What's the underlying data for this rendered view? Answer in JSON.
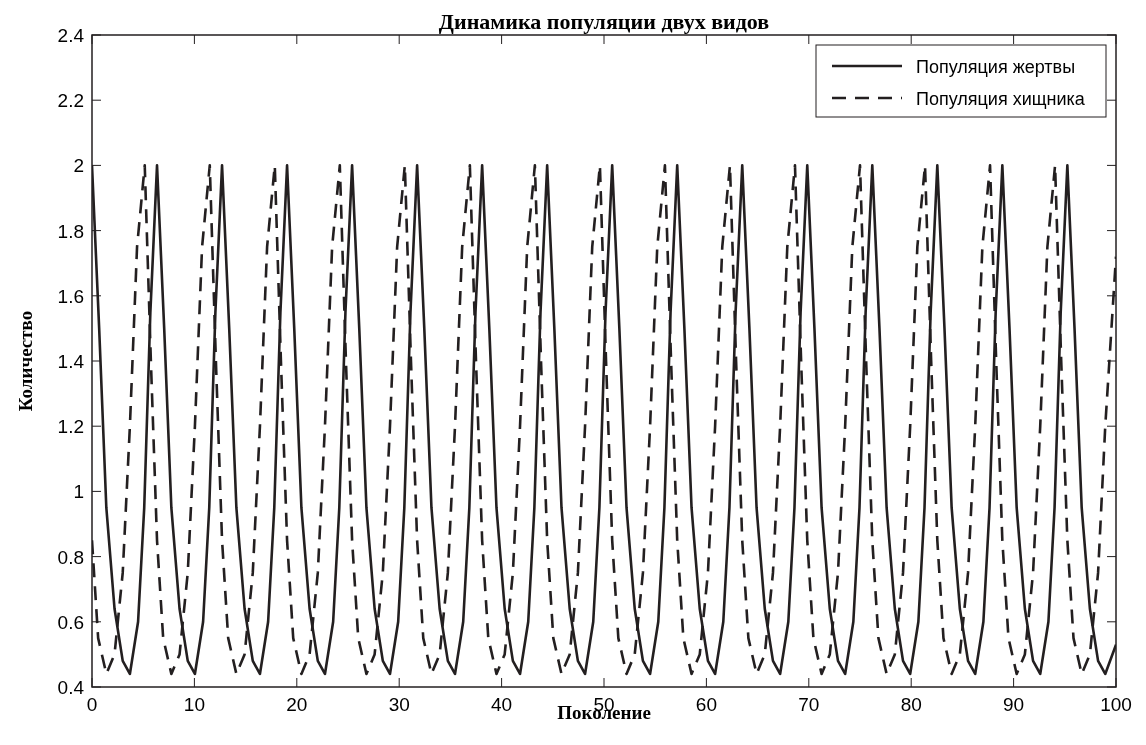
{
  "chart_data": {
    "type": "line",
    "title": "Динамика популяции двух видов",
    "xlabel": "Поколение",
    "ylabel": "Количество",
    "xlim": [
      0,
      100
    ],
    "xticks": [
      0,
      10,
      20,
      30,
      40,
      50,
      60,
      70,
      80,
      90,
      100
    ],
    "ylim": [
      0.4,
      2.4
    ],
    "yticks": [
      0.4,
      0.6,
      0.8,
      1,
      1.2,
      1.4,
      1.6,
      1.8,
      2,
      2.2,
      2.4
    ],
    "grid": false,
    "legend": "top right",
    "marker": "none",
    "series": [
      {
        "name": "Популяция жертвы",
        "color": "#231f20",
        "line_style": "solid",
        "x": [
          0,
          0.7,
          1.4,
          2.2,
          3.0,
          3.7,
          4.5,
          5.1,
          5.7,
          6.35,
          7.05,
          7.75,
          8.55,
          9.35,
          10.05,
          10.85,
          11.45,
          12.05,
          12.7,
          13.4,
          14.1,
          14.9,
          15.7,
          16.4,
          17.2,
          17.8,
          18.4,
          19.05,
          19.75,
          20.45,
          21.25,
          22.05,
          22.75,
          23.55,
          24.15,
          24.75,
          25.4,
          26.1,
          26.8,
          27.6,
          28.4,
          29.1,
          29.9,
          30.5,
          31.1,
          31.75,
          32.45,
          33.15,
          33.95,
          34.75,
          35.45,
          36.25,
          36.85,
          37.45,
          38.1,
          38.8,
          39.5,
          40.3,
          41.1,
          41.8,
          42.6,
          43.2,
          43.8,
          44.45,
          45.15,
          45.85,
          46.65,
          47.45,
          48.15,
          48.95,
          49.55,
          50.15,
          50.8,
          51.5,
          52.2,
          53,
          53.8,
          54.5,
          55.3,
          55.9,
          56.5,
          57.15,
          57.85,
          58.55,
          59.35,
          60.15,
          60.85,
          61.65,
          62.25,
          62.85,
          63.5,
          64.2,
          64.9,
          65.7,
          66.5,
          67.2,
          68,
          68.6,
          69.2,
          69.85,
          70.55,
          71.25,
          72.05,
          72.85,
          73.55,
          74.35,
          74.95,
          75.55,
          76.2,
          76.9,
          77.6,
          78.4,
          79.2,
          79.9,
          80.7,
          81.3,
          81.9,
          82.55,
          83.25,
          83.95,
          84.75,
          85.55,
          86.25,
          87.05,
          87.65,
          88.25,
          88.9,
          89.6,
          90.3,
          91.1,
          91.9,
          92.6,
          93.4,
          94,
          94.6,
          95.25,
          95.95,
          96.65,
          97.45,
          98.25,
          98.95,
          100
        ],
        "values": [
          2,
          1.5,
          0.95,
          0.64,
          0.48,
          0.44,
          0.6,
          0.95,
          1.55,
          2,
          1.5,
          0.95,
          0.64,
          0.48,
          0.44,
          0.6,
          0.95,
          1.55,
          2,
          1.5,
          0.95,
          0.64,
          0.48,
          0.44,
          0.6,
          0.95,
          1.55,
          2,
          1.5,
          0.95,
          0.64,
          0.48,
          0.44,
          0.6,
          0.95,
          1.55,
          2,
          1.5,
          0.95,
          0.64,
          0.48,
          0.44,
          0.6,
          0.95,
          1.55,
          2,
          1.5,
          0.95,
          0.64,
          0.48,
          0.44,
          0.6,
          0.95,
          1.55,
          2,
          1.5,
          0.95,
          0.64,
          0.48,
          0.44,
          0.6,
          0.95,
          1.55,
          2,
          1.5,
          0.95,
          0.64,
          0.48,
          0.44,
          0.6,
          0.95,
          1.55,
          2,
          1.5,
          0.95,
          0.64,
          0.48,
          0.44,
          0.6,
          0.95,
          1.55,
          2,
          1.5,
          0.95,
          0.64,
          0.48,
          0.44,
          0.6,
          0.95,
          1.55,
          2,
          1.5,
          0.95,
          0.64,
          0.48,
          0.44,
          0.6,
          0.95,
          1.55,
          2,
          1.5,
          0.95,
          0.64,
          0.48,
          0.44,
          0.6,
          0.95,
          1.55,
          2,
          1.5,
          0.95,
          0.64,
          0.48,
          0.44,
          0.6,
          0.95,
          1.55,
          2,
          1.5,
          0.95,
          0.64,
          0.48,
          0.44,
          0.6,
          0.95,
          1.55,
          2,
          1.5,
          0.95,
          0.64,
          0.48,
          0.44,
          0.6,
          0.95,
          1.55,
          2,
          1.5,
          0.95,
          0.64,
          0.48,
          0.44,
          0.53
        ]
      },
      {
        "name": "Популяция хищника",
        "color": "#231f20",
        "line_style": "dashed",
        "x": [
          0,
          0.6,
          1.4,
          2.2,
          3.0,
          3.7,
          4.4,
          5.15,
          5.75,
          6.35,
          6.95,
          7.75,
          8.55,
          9.35,
          10.05,
          10.75,
          11.5,
          12.1,
          12.7,
          13.3,
          14.1,
          14.9,
          15.7,
          16.4,
          17.1,
          17.85,
          18.45,
          19.05,
          19.65,
          20.45,
          21.25,
          22.05,
          22.75,
          23.45,
          24.2,
          24.8,
          25.4,
          26,
          26.8,
          27.6,
          28.4,
          29.1,
          29.8,
          30.55,
          31.15,
          31.75,
          32.35,
          33.15,
          33.95,
          34.75,
          35.45,
          36.15,
          36.9,
          37.5,
          38.1,
          38.7,
          39.5,
          40.3,
          41.1,
          41.8,
          42.5,
          43.25,
          43.85,
          44.45,
          45.05,
          45.85,
          46.65,
          47.45,
          48.15,
          48.85,
          49.6,
          50.2,
          50.8,
          51.4,
          52.2,
          53,
          53.8,
          54.5,
          55.2,
          55.95,
          56.55,
          57.15,
          57.75,
          58.55,
          59.35,
          60.15,
          60.85,
          61.55,
          62.3,
          62.9,
          63.5,
          64.1,
          64.9,
          65.7,
          66.5,
          67.2,
          67.9,
          68.65,
          69.25,
          69.85,
          70.45,
          71.25,
          72.05,
          72.85,
          73.55,
          74.25,
          75,
          75.6,
          76.2,
          76.8,
          77.6,
          78.4,
          79.2,
          79.9,
          80.6,
          81.35,
          81.95,
          82.55,
          83.15,
          83.95,
          84.75,
          85.55,
          86.25,
          86.95,
          87.7,
          88.3,
          88.9,
          89.5,
          90.3,
          91.1,
          91.9,
          92.6,
          93.3,
          94.05,
          94.65,
          95.25,
          95.85,
          96.65,
          97.45,
          98.25,
          98.95,
          100
        ],
        "values": [
          0.85,
          0.55,
          0.44,
          0.5,
          0.75,
          1.2,
          1.75,
          2,
          1.4,
          0.85,
          0.55,
          0.44,
          0.5,
          0.75,
          1.2,
          1.75,
          2,
          1.4,
          0.85,
          0.55,
          0.44,
          0.5,
          0.75,
          1.2,
          1.75,
          2,
          1.4,
          0.85,
          0.55,
          0.44,
          0.5,
          0.75,
          1.2,
          1.75,
          2,
          1.4,
          0.85,
          0.55,
          0.44,
          0.5,
          0.75,
          1.2,
          1.75,
          2,
          1.4,
          0.85,
          0.55,
          0.44,
          0.5,
          0.75,
          1.2,
          1.75,
          2,
          1.4,
          0.85,
          0.55,
          0.44,
          0.5,
          0.75,
          1.2,
          1.75,
          2,
          1.4,
          0.85,
          0.55,
          0.44,
          0.5,
          0.75,
          1.2,
          1.75,
          2,
          1.4,
          0.85,
          0.55,
          0.44,
          0.5,
          0.75,
          1.2,
          1.75,
          2,
          1.4,
          0.85,
          0.55,
          0.44,
          0.5,
          0.75,
          1.2,
          1.75,
          2,
          1.4,
          0.85,
          0.55,
          0.44,
          0.5,
          0.75,
          1.2,
          1.75,
          2,
          1.4,
          0.85,
          0.55,
          0.44,
          0.5,
          0.75,
          1.2,
          1.75,
          2,
          1.4,
          0.85,
          0.55,
          0.44,
          0.5,
          0.75,
          1.2,
          1.75,
          2,
          1.4,
          0.85,
          0.55,
          0.44,
          0.5,
          0.75,
          1.2,
          1.75,
          2,
          1.4,
          0.85,
          0.55,
          0.44,
          0.5,
          0.75,
          1.2,
          1.75,
          2,
          1.4,
          0.85,
          0.55,
          0.44,
          0.5,
          0.75,
          1.2,
          1.72
        ]
      }
    ]
  }
}
